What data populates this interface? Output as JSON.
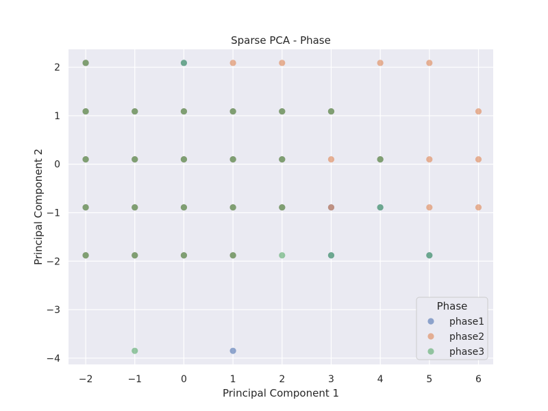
{
  "chart_data": {
    "type": "scatter",
    "title": "Sparse PCA - Phase",
    "xlabel": "Principal Component 1",
    "ylabel": "Principal Component 2",
    "xlim": [
      -2.35,
      6.3
    ],
    "ylim": [
      -4.13,
      2.37
    ],
    "xticks": [
      -2,
      -1,
      0,
      1,
      2,
      3,
      4,
      5,
      6
    ],
    "yticks": [
      -4,
      -3,
      -2,
      -1,
      0,
      1,
      2
    ],
    "grid": true,
    "legend": {
      "title": "Phase",
      "placement": "lower-right"
    },
    "marker_opacity": 0.6,
    "series": [
      {
        "name": "phase1",
        "color": "#4c72b0",
        "points": [
          [
            -2,
            2.09
          ],
          [
            0,
            2.09
          ],
          [
            -2,
            1.09
          ],
          [
            -1,
            1.09
          ],
          [
            0,
            1.09
          ],
          [
            1,
            1.09
          ],
          [
            2,
            1.09
          ],
          [
            3,
            1.09
          ],
          [
            -2,
            0.1
          ],
          [
            -1,
            0.1
          ],
          [
            0,
            0.1
          ],
          [
            1,
            0.1
          ],
          [
            2,
            0.1
          ],
          [
            4,
            0.1
          ],
          [
            -2,
            -0.89
          ],
          [
            -1,
            -0.89
          ],
          [
            0,
            -0.89
          ],
          [
            1,
            -0.89
          ],
          [
            2,
            -0.89
          ],
          [
            3,
            -0.89
          ],
          [
            4,
            -0.89
          ],
          [
            -2,
            -1.88
          ],
          [
            -1,
            -1.88
          ],
          [
            0,
            -1.88
          ],
          [
            1,
            -1.88
          ],
          [
            3,
            -1.88
          ],
          [
            5,
            -1.88
          ],
          [
            1,
            -3.85
          ]
        ]
      },
      {
        "name": "phase2",
        "color": "#dd8452",
        "points": [
          [
            -2,
            2.09
          ],
          [
            1,
            2.09
          ],
          [
            2,
            2.09
          ],
          [
            4,
            2.09
          ],
          [
            5,
            2.09
          ],
          [
            -2,
            1.09
          ],
          [
            -1,
            1.09
          ],
          [
            0,
            1.09
          ],
          [
            1,
            1.09
          ],
          [
            2,
            1.09
          ],
          [
            3,
            1.09
          ],
          [
            6,
            1.09
          ],
          [
            -2,
            0.1
          ],
          [
            -1,
            0.1
          ],
          [
            0,
            0.1
          ],
          [
            1,
            0.1
          ],
          [
            2,
            0.1
          ],
          [
            3,
            0.1
          ],
          [
            4,
            0.1
          ],
          [
            5,
            0.1
          ],
          [
            6,
            0.1
          ],
          [
            -2,
            -0.89
          ],
          [
            -1,
            -0.89
          ],
          [
            0,
            -0.89
          ],
          [
            1,
            -0.89
          ],
          [
            2,
            -0.89
          ],
          [
            3,
            -0.89
          ],
          [
            5,
            -0.89
          ],
          [
            6,
            -0.89
          ],
          [
            -2,
            -1.88
          ],
          [
            -1,
            -1.88
          ],
          [
            0,
            -1.88
          ],
          [
            1,
            -1.88
          ]
        ]
      },
      {
        "name": "phase3",
        "color": "#55a868",
        "points": [
          [
            -2,
            2.09
          ],
          [
            0,
            2.09
          ],
          [
            -2,
            1.09
          ],
          [
            -1,
            1.09
          ],
          [
            0,
            1.09
          ],
          [
            1,
            1.09
          ],
          [
            2,
            1.09
          ],
          [
            3,
            1.09
          ],
          [
            -2,
            0.1
          ],
          [
            -1,
            0.1
          ],
          [
            0,
            0.1
          ],
          [
            1,
            0.1
          ],
          [
            2,
            0.1
          ],
          [
            4,
            0.1
          ],
          [
            -2,
            -0.89
          ],
          [
            -1,
            -0.89
          ],
          [
            0,
            -0.89
          ],
          [
            1,
            -0.89
          ],
          [
            2,
            -0.89
          ],
          [
            4,
            -0.89
          ],
          [
            -2,
            -1.88
          ],
          [
            -1,
            -1.88
          ],
          [
            0,
            -1.88
          ],
          [
            1,
            -1.88
          ],
          [
            2,
            -1.88
          ],
          [
            3,
            -1.88
          ],
          [
            5,
            -1.88
          ],
          [
            -1,
            -3.85
          ]
        ]
      }
    ]
  }
}
